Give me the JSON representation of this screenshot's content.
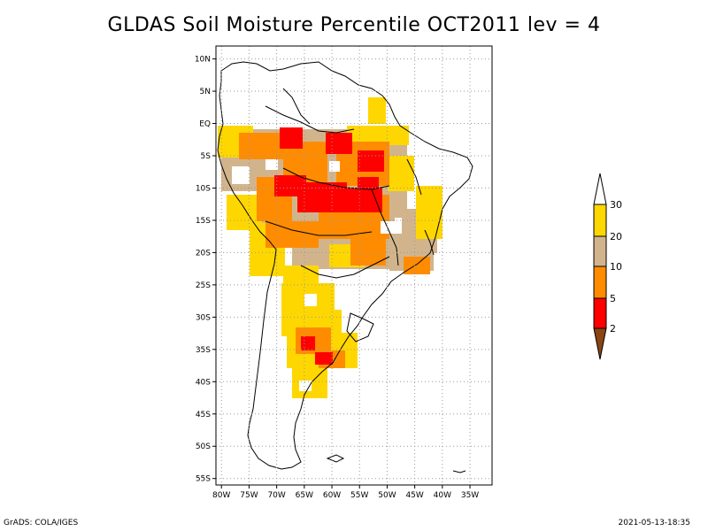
{
  "title": "GLDAS Soil Moisture Percentile OCT2011 lev = 4",
  "footer": {
    "left": "GrADS: COLA/IGES",
    "right": "2021-05-13-18:35"
  },
  "map": {
    "lat_range": [
      -56,
      12
    ],
    "lon_range": [
      -81,
      -31
    ],
    "lat_ticks": [
      {
        "value": 10,
        "label": "10N"
      },
      {
        "value": 5,
        "label": "5N"
      },
      {
        "value": 0,
        "label": "EQ"
      },
      {
        "value": -5,
        "label": "5S"
      },
      {
        "value": -10,
        "label": "10S"
      },
      {
        "value": -15,
        "label": "15S"
      },
      {
        "value": -20,
        "label": "20S"
      },
      {
        "value": -25,
        "label": "25S"
      },
      {
        "value": -30,
        "label": "30S"
      },
      {
        "value": -35,
        "label": "35S"
      },
      {
        "value": -40,
        "label": "40S"
      },
      {
        "value": -45,
        "label": "45S"
      },
      {
        "value": -50,
        "label": "50S"
      },
      {
        "value": -55,
        "label": "55S"
      }
    ],
    "lon_ticks": [
      {
        "value": -80,
        "label": "80W"
      },
      {
        "value": -75,
        "label": "75W"
      },
      {
        "value": -70,
        "label": "70W"
      },
      {
        "value": -65,
        "label": "65W"
      },
      {
        "value": -60,
        "label": "60W"
      },
      {
        "value": -55,
        "label": "55W"
      },
      {
        "value": -50,
        "label": "50W"
      },
      {
        "value": -45,
        "label": "45W"
      },
      {
        "value": -40,
        "label": "40W"
      },
      {
        "value": -35,
        "label": "35W"
      }
    ]
  },
  "legend": {
    "labels": [
      "30",
      "20",
      "10",
      "5",
      "2"
    ],
    "colors": {
      "above30": "#ffffff",
      "20_30": "#ffd700",
      "10_20": "#d2b48c",
      "5_10": "#ff8c00",
      "2_5": "#ff0000",
      "below2": "#8b4513"
    }
  },
  "colors": {
    "yellow": "#ffd700",
    "tan": "#d2b48c",
    "orange": "#ff8c00",
    "red": "#ff0000"
  }
}
